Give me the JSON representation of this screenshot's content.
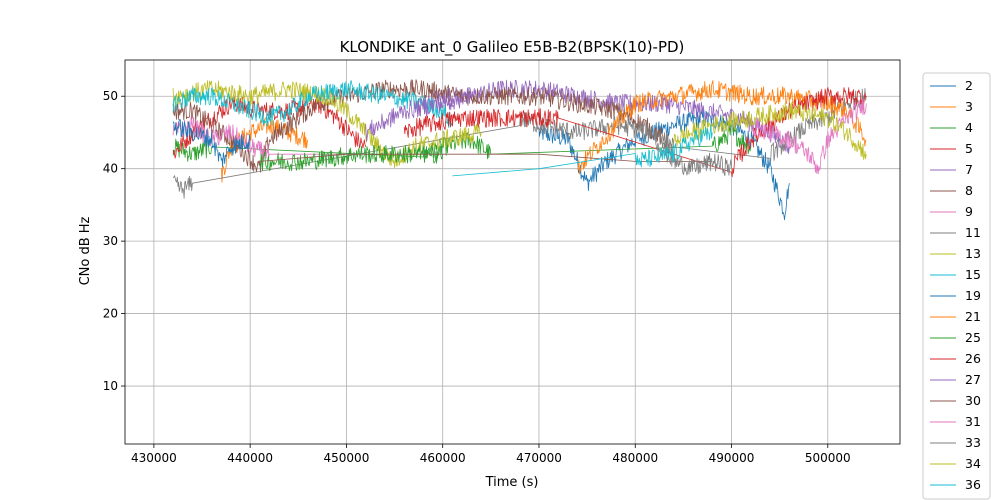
{
  "chart_data": {
    "type": "line",
    "title": "KLONDIKE ant_0 Galileo E5B-B2(BPSK(10)-PD)",
    "xlabel": "Time (s)",
    "ylabel": "CNo dB Hz",
    "xlim": [
      427000,
      507500
    ],
    "ylim": [
      2,
      55
    ],
    "xticks": [
      430000,
      440000,
      450000,
      460000,
      470000,
      480000,
      490000,
      500000
    ],
    "yticks": [
      10,
      20,
      30,
      40,
      50
    ],
    "xtick_labels": [
      "430000",
      "440000",
      "450000",
      "460000",
      "470000",
      "480000",
      "490000",
      "500000"
    ],
    "ytick_labels": [
      "10",
      "20",
      "30",
      "40",
      "50"
    ],
    "grid": true,
    "legend_position": "outside-right",
    "series": [
      {
        "name": "2",
        "color": "#1f77b4",
        "points": [
          [
            470000,
            45
          ],
          [
            473000,
            44
          ],
          [
            475000,
            38
          ],
          [
            477000,
            41
          ],
          [
            480000,
            44
          ],
          [
            484000,
            46
          ],
          [
            487000,
            47
          ],
          [
            490000,
            46
          ],
          [
            492000,
            44
          ],
          [
            494000,
            40
          ],
          [
            495500,
            34
          ],
          [
            496000,
            38
          ]
        ]
      },
      {
        "name": "3",
        "color": "#ff7f0e",
        "points": [
          [
            437000,
            39
          ],
          [
            438000,
            43
          ],
          [
            440000,
            45
          ],
          [
            442000,
            46
          ],
          [
            444000,
            45
          ],
          [
            446000,
            44
          ]
        ]
      },
      {
        "name": "4",
        "color": "#2ca02c",
        "points": [
          [
            432000,
            43
          ],
          [
            434000,
            42
          ],
          [
            436000,
            43
          ],
          [
            458000,
            42
          ],
          [
            460000,
            43
          ],
          [
            463000,
            44
          ],
          [
            465000,
            42
          ],
          [
            488000,
            43
          ],
          [
            490000,
            45
          ],
          [
            492000,
            43
          ]
        ]
      },
      {
        "name": "5",
        "color": "#d62728",
        "points": [
          [
            432000,
            42
          ],
          [
            434000,
            45
          ],
          [
            436000,
            47
          ],
          [
            438000,
            49
          ],
          [
            441000,
            48
          ],
          [
            444000,
            48
          ],
          [
            447000,
            49
          ],
          [
            449000,
            47
          ],
          [
            451000,
            44
          ],
          [
            452000,
            43
          ]
        ]
      },
      {
        "name": "7",
        "color": "#9467bd",
        "points": [
          [
            458000,
            49
          ],
          [
            460000,
            50
          ],
          [
            463000,
            50
          ],
          [
            466000,
            51
          ],
          [
            470000,
            51
          ],
          [
            474000,
            50
          ],
          [
            478000,
            49
          ],
          [
            483000,
            49
          ],
          [
            487000,
            48
          ],
          [
            491000,
            47
          ],
          [
            494000,
            45
          ],
          [
            496000,
            43
          ]
        ]
      },
      {
        "name": "8",
        "color": "#8c564b",
        "points": [
          [
            432000,
            48
          ],
          [
            434000,
            48
          ],
          [
            436000,
            46
          ],
          [
            438000,
            44
          ],
          [
            441000,
            40
          ],
          [
            442000,
            44
          ],
          [
            444000,
            46
          ],
          [
            447000,
            49
          ],
          [
            450000,
            50
          ],
          [
            454000,
            51
          ],
          [
            458000,
            51
          ],
          [
            462000,
            50
          ],
          [
            466000,
            50
          ],
          [
            470000,
            50
          ],
          [
            474000,
            49
          ],
          [
            478000,
            48
          ],
          [
            481000,
            46
          ],
          [
            483000,
            44
          ],
          [
            484000,
            42
          ]
        ]
      },
      {
        "name": "9",
        "color": "#e377c2",
        "points": [
          [
            432000,
            45
          ],
          [
            434000,
            46
          ],
          [
            436000,
            44
          ],
          [
            438000,
            45
          ],
          [
            440000,
            43
          ],
          [
            442000,
            42
          ],
          [
            450000,
            42
          ]
        ]
      },
      {
        "name": "11",
        "color": "#7f7f7f",
        "points": [
          [
            432000,
            38
          ],
          [
            433000,
            37
          ],
          [
            434000,
            38
          ],
          [
            468000,
            47
          ],
          [
            470000,
            46
          ],
          [
            474000,
            45
          ],
          [
            478000,
            46
          ],
          [
            482000,
            45
          ],
          [
            484000,
            43
          ],
          [
            494000,
            42
          ],
          [
            496000,
            44
          ],
          [
            498000,
            46
          ],
          [
            500000,
            47
          ],
          [
            502000,
            49
          ],
          [
            504000,
            50
          ]
        ]
      },
      {
        "name": "13",
        "color": "#bcbd22",
        "points": [
          [
            432000,
            50
          ],
          [
            436000,
            51
          ],
          [
            440000,
            50
          ],
          [
            444000,
            51
          ],
          [
            448000,
            50
          ],
          [
            450000,
            48
          ],
          [
            452000,
            45
          ],
          [
            454000,
            42
          ],
          [
            455000,
            41
          ],
          [
            457000,
            43
          ],
          [
            460000,
            44
          ],
          [
            464000,
            45
          ]
        ]
      },
      {
        "name": "15",
        "color": "#17becf",
        "points": [
          [
            432000,
            49
          ],
          [
            434000,
            50
          ],
          [
            436000,
            50
          ],
          [
            438000,
            49
          ],
          [
            440000,
            48
          ],
          [
            442000,
            47
          ],
          [
            444000,
            48
          ],
          [
            446000,
            50
          ],
          [
            450000,
            51
          ],
          [
            454000,
            50
          ],
          [
            458000,
            49
          ],
          [
            460000,
            48
          ],
          [
            461000,
            46
          ]
        ]
      },
      {
        "name": "19",
        "color": "#1f77b4",
        "points": [
          [
            432000,
            46
          ],
          [
            434000,
            45
          ],
          [
            436000,
            44
          ],
          [
            437000,
            41
          ],
          [
            438000,
            43
          ],
          [
            440000,
            44
          ]
        ]
      },
      {
        "name": "21",
        "color": "#ff7f0e",
        "points": [
          [
            474000,
            40
          ],
          [
            476000,
            43
          ],
          [
            478000,
            46
          ],
          [
            480000,
            49
          ],
          [
            484000,
            50
          ],
          [
            488000,
            51
          ],
          [
            492000,
            50
          ],
          [
            496000,
            50
          ],
          [
            500000,
            49
          ],
          [
            502000,
            48
          ],
          [
            503000,
            46
          ],
          [
            504000,
            44
          ]
        ]
      },
      {
        "name": "25",
        "color": "#2ca02c",
        "points": [
          [
            441000,
            41
          ],
          [
            446000,
            41
          ],
          [
            451000,
            42
          ],
          [
            456000,
            42
          ],
          [
            460000,
            42
          ]
        ]
      },
      {
        "name": "26",
        "color": "#d62728",
        "points": [
          [
            456000,
            45
          ],
          [
            458000,
            46
          ],
          [
            462000,
            47
          ],
          [
            466000,
            47
          ],
          [
            470000,
            47
          ],
          [
            472000,
            47
          ],
          [
            490000,
            40
          ],
          [
            492000,
            44
          ],
          [
            494000,
            46
          ],
          [
            496000,
            48
          ],
          [
            500000,
            50
          ],
          [
            504000,
            50
          ]
        ]
      },
      {
        "name": "27",
        "color": "#9467bd",
        "points": [
          [
            452000,
            45
          ],
          [
            456000,
            48
          ],
          [
            460000,
            49
          ],
          [
            463000,
            50
          ]
        ]
      },
      {
        "name": "30",
        "color": "#8c564b",
        "points": [
          [
            441000,
            41
          ],
          [
            450000,
            42
          ],
          [
            460000,
            42
          ],
          [
            470000,
            42
          ],
          [
            480000,
            41
          ],
          [
            488000,
            41
          ]
        ]
      },
      {
        "name": "31",
        "color": "#e377c2",
        "points": [
          [
            492000,
            46
          ],
          [
            494000,
            45
          ],
          [
            496000,
            44
          ],
          [
            498000,
            42
          ],
          [
            499000,
            40
          ],
          [
            500000,
            44
          ],
          [
            502000,
            47
          ],
          [
            504000,
            49
          ]
        ]
      },
      {
        "name": "33",
        "color": "#7f7f7f",
        "points": [
          [
            482000,
            44
          ],
          [
            484000,
            41
          ],
          [
            486000,
            40
          ],
          [
            488000,
            41
          ],
          [
            490000,
            40
          ]
        ]
      },
      {
        "name": "34",
        "color": "#bcbd22",
        "points": [
          [
            484000,
            44
          ],
          [
            488000,
            46
          ],
          [
            492000,
            47
          ],
          [
            496000,
            48
          ],
          [
            500000,
            47
          ],
          [
            502000,
            45
          ],
          [
            504000,
            42
          ]
        ]
      },
      {
        "name": "36",
        "color": "#17becf",
        "points": [
          [
            461000,
            39
          ],
          [
            470000,
            40
          ],
          [
            480000,
            41
          ],
          [
            484000,
            42
          ],
          [
            486000,
            44
          ],
          [
            488000,
            45
          ]
        ]
      }
    ]
  }
}
